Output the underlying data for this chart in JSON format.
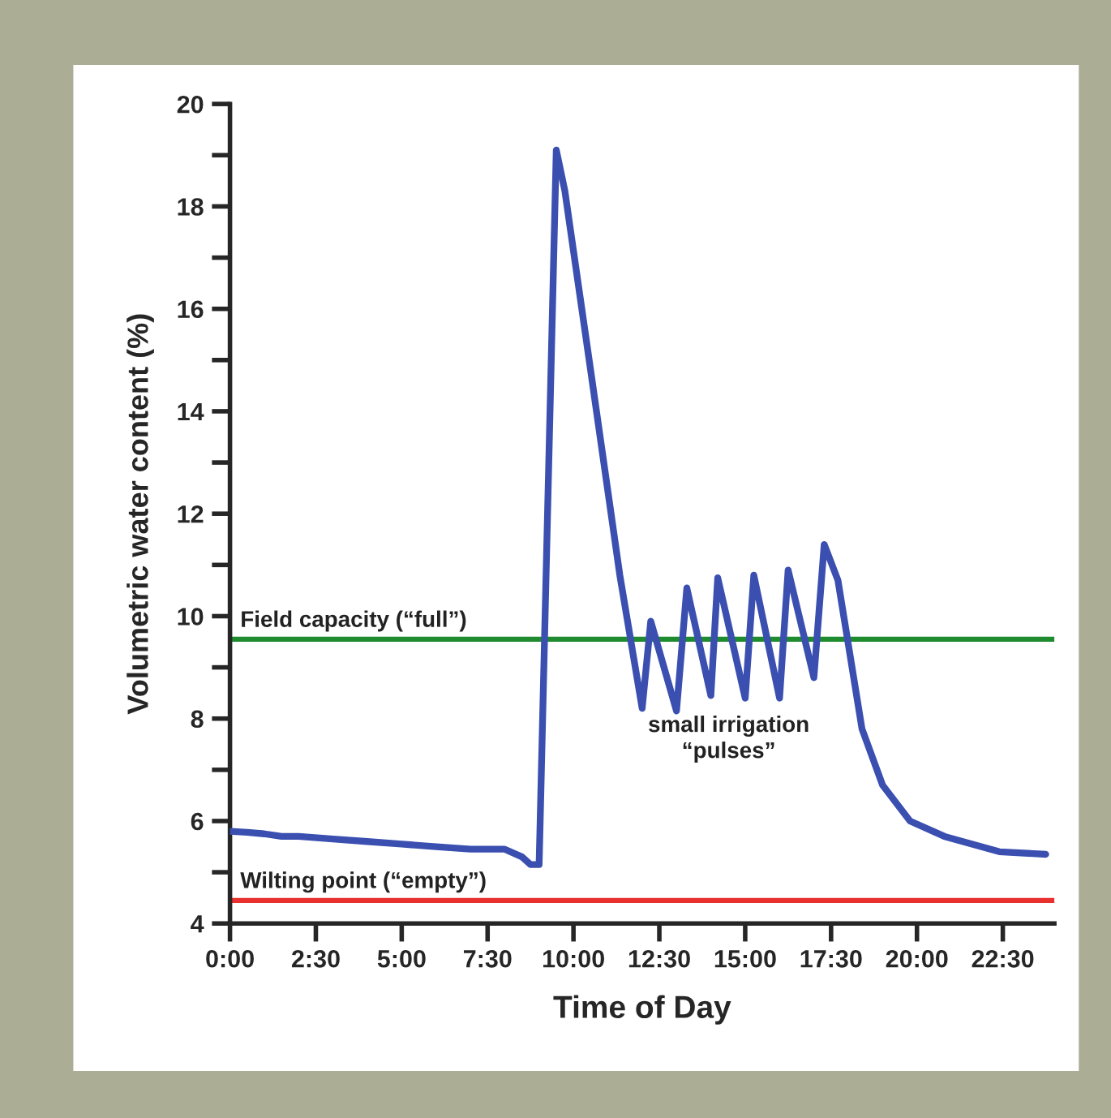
{
  "chart_data": {
    "type": "line",
    "xlabel": "Time of Day",
    "ylabel": "Volumetric water content (%)",
    "x": [
      0,
      0.5,
      1,
      1.5,
      2,
      3,
      4,
      5,
      6,
      7,
      8,
      8.5,
      8.75,
      9.0,
      9.5,
      9.75,
      10.5,
      11.35,
      12.0,
      12.25,
      13.0,
      13.3,
      14.0,
      14.2,
      15.0,
      15.25,
      16.0,
      16.25,
      17.0,
      17.3,
      17.7,
      18.4,
      19.0,
      19.8,
      20.8,
      22.4,
      23.75
    ],
    "series": [
      {
        "color": "#3a4fb0",
        "values": [
          5.8,
          5.78,
          5.75,
          5.7,
          5.7,
          5.65,
          5.6,
          5.55,
          5.5,
          5.45,
          5.45,
          5.3,
          5.15,
          5.15,
          19.1,
          18.3,
          14.8,
          10.8,
          8.2,
          9.9,
          8.15,
          10.55,
          8.45,
          10.75,
          8.4,
          10.8,
          8.4,
          10.9,
          8.8,
          11.4,
          10.7,
          7.8,
          6.7,
          6.0,
          5.7,
          5.4,
          5.35
        ]
      }
    ],
    "xlim": [
      0,
      24
    ],
    "ylim": [
      4,
      20
    ],
    "xticks": [
      {
        "value": 0,
        "label": "0:00"
      },
      {
        "value": 2.5,
        "label": "2:30"
      },
      {
        "value": 5,
        "label": "5:00"
      },
      {
        "value": 7.5,
        "label": "7:30"
      },
      {
        "value": 10,
        "label": "10:00"
      },
      {
        "value": 12.5,
        "label": "12:30"
      },
      {
        "value": 15,
        "label": "15:00"
      },
      {
        "value": 17.5,
        "label": "17:30"
      },
      {
        "value": 20,
        "label": "20:00"
      },
      {
        "value": 22.5,
        "label": "22:30"
      }
    ],
    "yticks": [
      4,
      {
        "value": 5,
        "label": null
      },
      6,
      {
        "value": 7,
        "label": null
      },
      8,
      {
        "value": 9,
        "label": null
      },
      10,
      {
        "value": 11,
        "label": null
      },
      12,
      {
        "value": 13,
        "label": null
      },
      14,
      {
        "value": 15,
        "label": null
      },
      16,
      {
        "value": 17,
        "label": null
      },
      18,
      {
        "value": 19,
        "label": null
      },
      20
    ],
    "ref_lines": [
      {
        "axis": "y",
        "value": 9.55,
        "label": "Field capacity (“full”)",
        "color": "#1e8c2e"
      },
      {
        "axis": "y",
        "value": 4.45,
        "label": "Wilting point (“empty”)",
        "color": "#e8302e"
      }
    ],
    "annotations": [
      "small irrigation\n“pulses”"
    ],
    "grid": false,
    "marker": "none",
    "line_style": "solid"
  }
}
